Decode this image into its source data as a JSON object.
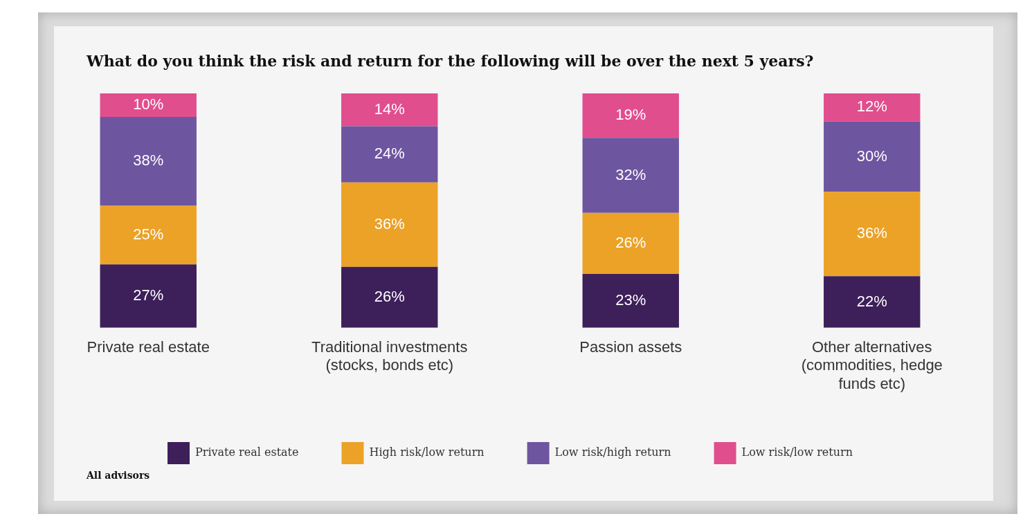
{
  "chart_data": {
    "type": "bar",
    "stacked": true,
    "title": "What do you think the risk and return for the following will be over the next 5 years?",
    "categories": [
      "Private real estate",
      "Traditional investments (stocks, bonds etc)",
      "Passion assets",
      "Other alternatives (commodities, hedge funds etc)"
    ],
    "series": [
      {
        "name": "Private real estate",
        "color": "#3d1f5a",
        "values": [
          27,
          26,
          23,
          22
        ],
        "value_labels": [
          "27%",
          "26%",
          "23%",
          "22%"
        ]
      },
      {
        "name": "High risk/low return",
        "color": "#eba227",
        "values": [
          25,
          36,
          26,
          36
        ],
        "value_labels": [
          "25%",
          "36%",
          "26%",
          "36%"
        ]
      },
      {
        "name": "Low risk/high return",
        "color": "#6e55a0",
        "values": [
          38,
          24,
          32,
          30
        ],
        "value_labels": [
          "38%",
          "24%",
          "32%",
          "30%"
        ]
      },
      {
        "name": "Low risk/low return",
        "color": "#e04e8e",
        "values": [
          10,
          14,
          19,
          12
        ],
        "value_labels": [
          "10%",
          "14%",
          "19%",
          "12%"
        ]
      }
    ],
    "legend": "bottom",
    "grid": false,
    "annotations": [
      "All advisors"
    ]
  }
}
